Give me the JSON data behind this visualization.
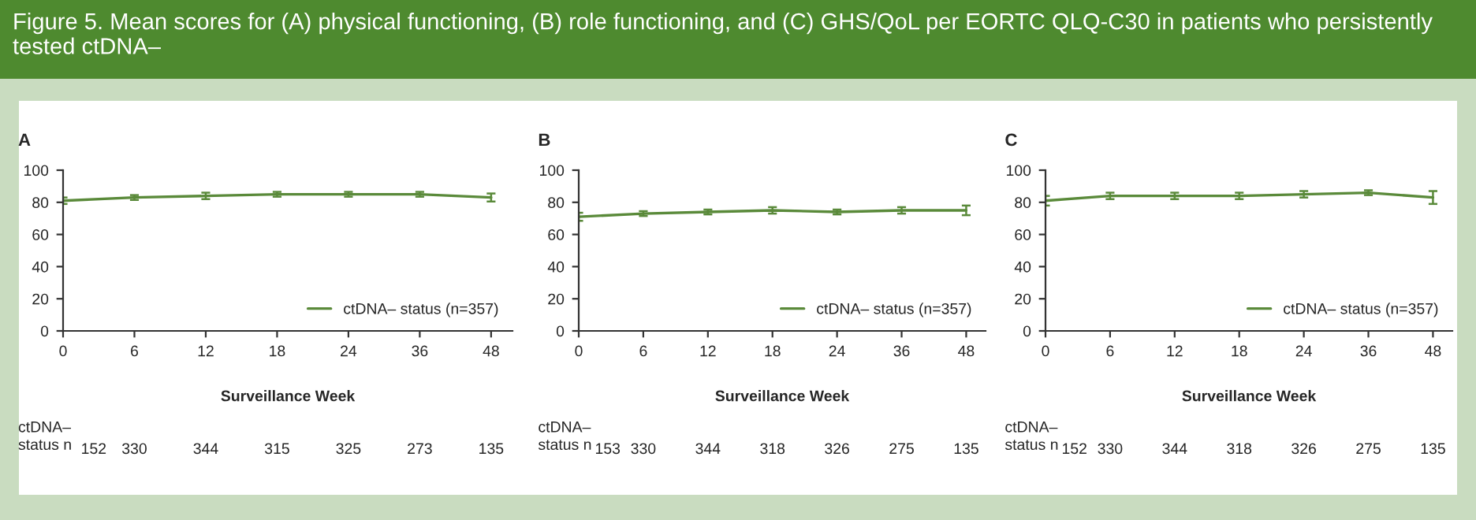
{
  "chart_data": [
    {
      "type": "line",
      "title": "A",
      "xlabel": "Surveillance Week",
      "categories": [
        "0",
        "6",
        "12",
        "18",
        "24",
        "36",
        "48"
      ],
      "series": [
        {
          "name": "ctDNA– status (n=357)",
          "color": "#5a8a3a",
          "values": [
            81,
            83,
            84,
            85,
            85,
            85,
            83
          ],
          "errors": [
            2,
            1.5,
            2,
            1.5,
            1.5,
            1.5,
            2.5
          ]
        }
      ],
      "ylim": [
        0,
        100
      ],
      "yticks": [
        0,
        20,
        40,
        60,
        80,
        100
      ],
      "legend": "lower right",
      "grid": false,
      "marker": "none",
      "line_style": "solid",
      "annotations": [
        "Figure 5. Mean scores for (A) physical functioning, (B) role functioning, and (C) GHS/QoL per EORTC QLQ-C30 in patients who persistently tested ctDNA–",
        "ctDNA–\nstatus n",
        "152",
        "330",
        "344",
        "315",
        "325",
        "273",
        "135"
      ]
    },
    {
      "type": "line",
      "title": "B",
      "xlabel": "Surveillance Week",
      "categories": [
        "0",
        "6",
        "12",
        "18",
        "24",
        "36",
        "48"
      ],
      "series": [
        {
          "name": "ctDNA– status (n=357)",
          "color": "#5a8a3a",
          "values": [
            71,
            73,
            74,
            75,
            74,
            75,
            75
          ],
          "errors": [
            2.5,
            1.5,
            1.5,
            2,
            1.5,
            2,
            3
          ]
        }
      ],
      "ylim": [
        0,
        100
      ],
      "yticks": [
        0,
        20,
        40,
        60,
        80,
        100
      ],
      "legend": "lower right",
      "grid": false,
      "marker": "none",
      "line_style": "solid",
      "annotations": [
        "ctDNA–\nstatus n",
        "153",
        "330",
        "344",
        "318",
        "326",
        "275",
        "135"
      ]
    },
    {
      "type": "line",
      "title": "C",
      "xlabel": "Surveillance Week",
      "categories": [
        "0",
        "6",
        "12",
        "18",
        "24",
        "36",
        "48"
      ],
      "series": [
        {
          "name": "ctDNA– status (n=357)",
          "color": "#5a8a3a",
          "values": [
            81,
            84,
            84,
            84,
            85,
            86,
            83
          ],
          "errors": [
            3,
            2,
            2,
            2,
            2,
            1.5,
            4
          ]
        }
      ],
      "ylim": [
        0,
        100
      ],
      "yticks": [
        0,
        20,
        40,
        60,
        80,
        100
      ],
      "legend": "lower right",
      "grid": false,
      "marker": "none",
      "line_style": "solid",
      "annotations": [
        "ctDNA–\nstatus n",
        "152",
        "330",
        "344",
        "318",
        "326",
        "275",
        "135"
      ]
    }
  ]
}
